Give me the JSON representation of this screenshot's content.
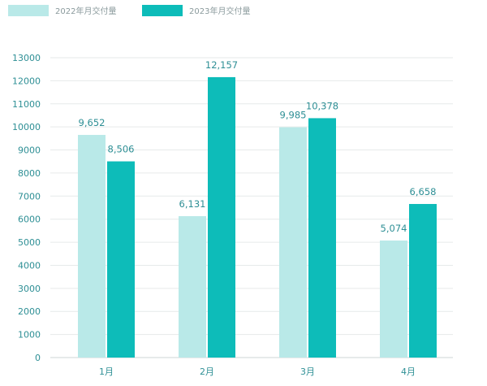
{
  "chart_data": {
    "type": "bar",
    "categories": [
      "1月",
      "2月",
      "3月",
      "4月"
    ],
    "series": [
      {
        "name": "2022年月交付量",
        "color": "#b9e9e8",
        "values": [
          9652,
          6131,
          9985,
          5074
        ]
      },
      {
        "name": "2023年月交付量",
        "color": "#0dbcb9",
        "values": [
          8506,
          12157,
          10378,
          6658
        ]
      }
    ],
    "data_labels": [
      [
        "9,652",
        "6,131",
        "9,985",
        "5,074"
      ],
      [
        "8,506",
        "12,157",
        "10,378",
        "6,658"
      ]
    ],
    "y_ticks": [
      "0",
      "1000",
      "2000",
      "3000",
      "4000",
      "5000",
      "6000",
      "7000",
      "8000",
      "9000",
      "10000",
      "11000",
      "12000",
      "13000"
    ],
    "ylim": [
      0,
      13000
    ],
    "grid": true,
    "legend": "top-left",
    "title": "",
    "xlabel": "",
    "ylabel": ""
  }
}
